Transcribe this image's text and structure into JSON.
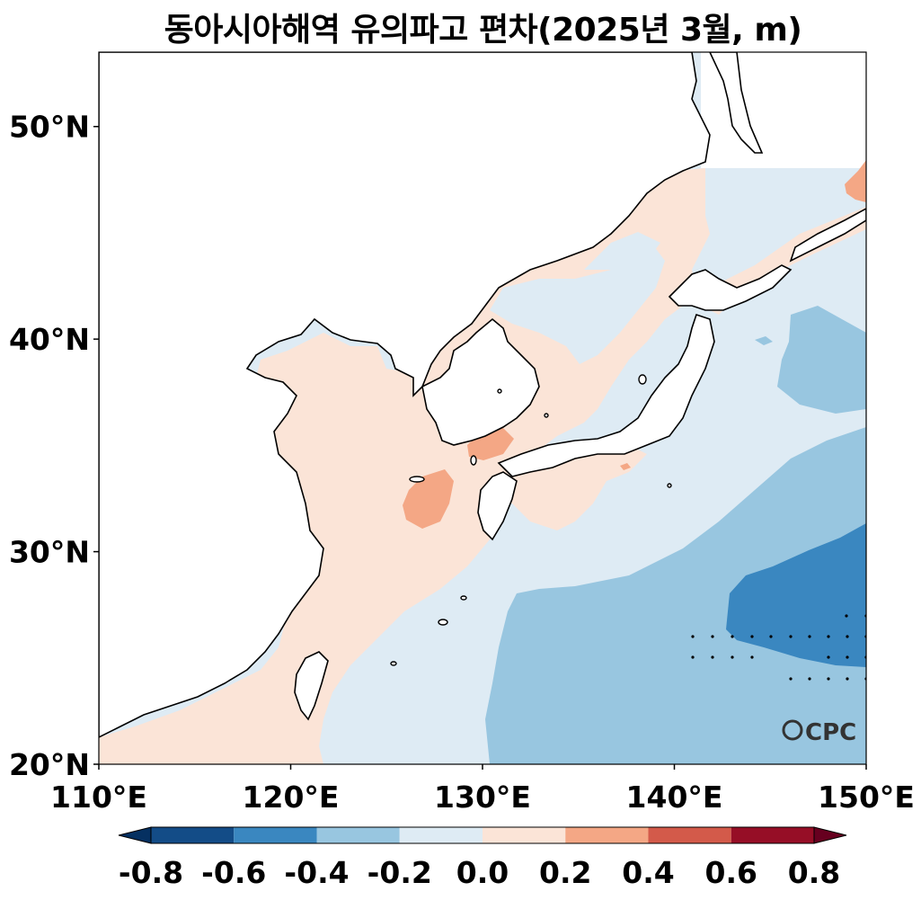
{
  "title": "동아시아해역 유의파고 편차(2025년 3월, m)",
  "logo": "OCPC",
  "axes": {
    "x_ticks": [
      "110°E",
      "120°E",
      "130°E",
      "140°E",
      "150°E"
    ],
    "y_ticks": [
      "50°N",
      "40°N",
      "30°N",
      "20°N"
    ],
    "lon_range": [
      110,
      150
    ],
    "lat_range": [
      20,
      53.5
    ]
  },
  "colorbar": {
    "labels": [
      "-0.8",
      "-0.6",
      "-0.4",
      "-0.2",
      "0.0",
      "0.2",
      "0.4",
      "0.6",
      "0.8"
    ],
    "colors": [
      "#053061",
      "#134c87",
      "#3a87c0",
      "#98c6e0",
      "#deebf4",
      "#fbe4d7",
      "#f4a785",
      "#d35a4a",
      "#960e26",
      "#67001f"
    ],
    "extend": "both"
  },
  "colors": {
    "neg_02": "#deebf4",
    "neg_04": "#98c6e0",
    "neg_06": "#3a87c0",
    "pos_02": "#fbe4d7",
    "pos_04": "#f4a785",
    "land": "#ffffff",
    "coast": "#000000"
  }
}
